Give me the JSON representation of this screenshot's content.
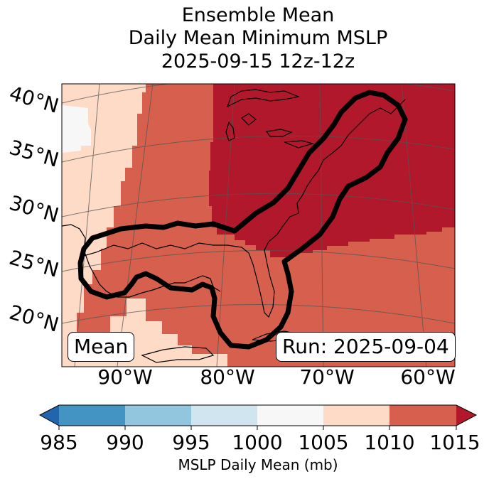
{
  "title": {
    "line1": "Ensemble Mean",
    "line2": "Daily Mean Minimum MSLP",
    "line3": "2025-09-15 12z-12z"
  },
  "map": {
    "latitude_labels": [
      "40°N",
      "35°N",
      "30°N",
      "25°N",
      "20°N"
    ],
    "longitude_labels": [
      "90°W",
      "80°W",
      "70°W",
      "60°W"
    ],
    "mean_label": "Mean",
    "run_label": "Run: 2025-09-04",
    "contour_color": "#000000",
    "coast_color": "#000000"
  },
  "colorbar": {
    "ticks": [
      "985",
      "990",
      "995",
      "1000",
      "1005",
      "1010",
      "1015"
    ],
    "label": "MSLP Daily Mean (mb)",
    "colors": {
      "under": "#2166ac",
      "985-990": "#4393c3",
      "990-995": "#92c5de",
      "995-1000": "#d1e5f0",
      "1000-1005": "#f7f7f7",
      "1005-1010": "#fddbc7",
      "1010-1015": "#d6604d",
      "over": "#b2182b"
    }
  }
}
